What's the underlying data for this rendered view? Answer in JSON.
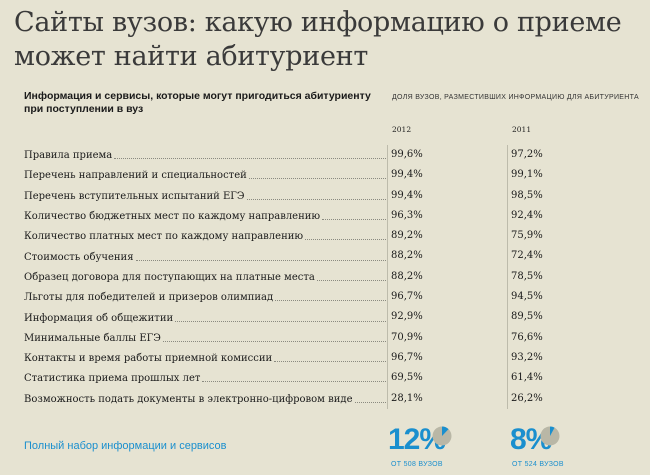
{
  "title": "Сайты вузов: какую информацию о приеме может найти абитуриент",
  "header_left": "Информация и сервисы, которые могут пригодиться абитуриенту при поступлении в вуз",
  "header_right": "Доля вузов, разместивших информацию для абитуриента",
  "colors": {
    "background": "#e6e3d2",
    "accent": "#1a8fce",
    "pie_rest": "#b9b7a6"
  },
  "chart_data": {
    "type": "table",
    "title": "Сайты вузов: какую информацию о приеме может найти абитуриент",
    "columns": [
      "2012",
      "2011"
    ],
    "rows": [
      {
        "label": "Правила приема",
        "v2012": "99,6%",
        "v2011": "97,2%"
      },
      {
        "label": "Перечень направлений и специальностей",
        "v2012": "99,4%",
        "v2011": "99,1%"
      },
      {
        "label": "Перечень вступительных испытаний ЕГЭ",
        "v2012": "99,4%",
        "v2011": "98,5%"
      },
      {
        "label": "Количество бюджетных мест по каждому направлению",
        "v2012": "96,3%",
        "v2011": "92,4%"
      },
      {
        "label": "Количество платных мест по каждому направлению",
        "v2012": "89,2%",
        "v2011": "75,9%"
      },
      {
        "label": "Стоимость обучения",
        "v2012": "88,2%",
        "v2011": "72,4%"
      },
      {
        "label": "Образец договора для поступающих на платные места",
        "v2012": "88,2%",
        "v2011": "78,5%"
      },
      {
        "label": "Льготы для победителей и призеров олимпиад",
        "v2012": "96,7%",
        "v2011": "94,5%"
      },
      {
        "label": "Информация об общежитии",
        "v2012": "92,9%",
        "v2011": "89,5%"
      },
      {
        "label": "Минимальные баллы ЕГЭ",
        "v2012": "70,9%",
        "v2011": "76,6%"
      },
      {
        "label": "Контакты и время работы приемной комиссии",
        "v2012": "96,7%",
        "v2011": "93,2%"
      },
      {
        "label": "Статистика приема прошлых лет",
        "v2012": "69,5%",
        "v2011": "61,4%"
      },
      {
        "label": "Возможность подать документы в электронно-цифровом виде",
        "v2012": "28,1%",
        "v2011": "26,2%"
      }
    ],
    "summary": {
      "label": "Полный набор информации и сервисов",
      "v2012": "12%",
      "v2011": "8%",
      "v2012_fraction": 0.12,
      "v2011_fraction": 0.08,
      "note2012": "от 508 вузов",
      "note2011": "от 524 вузов"
    }
  }
}
